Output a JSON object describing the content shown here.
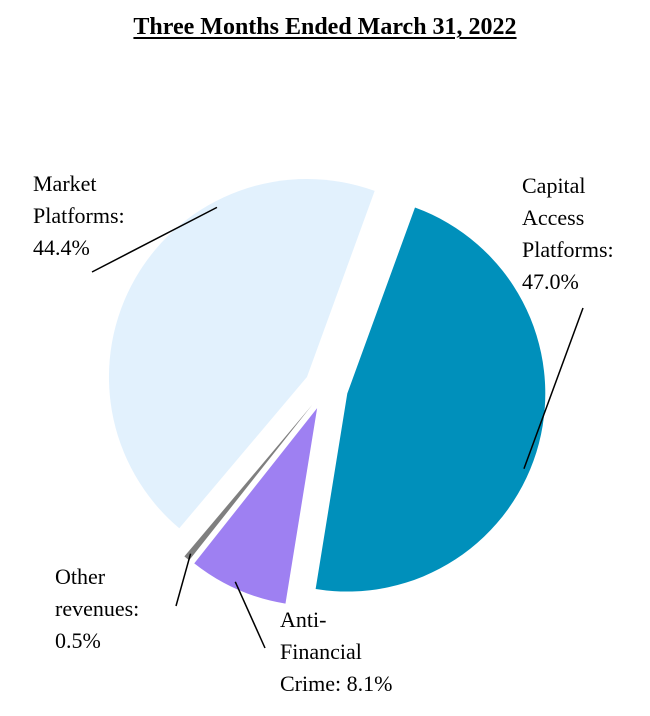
{
  "chart_data": {
    "type": "pie",
    "title": "Three Months Ended March 31, 2022",
    "slices": [
      {
        "key": "capital",
        "name": "Capital Access Platforms",
        "value": 47.0,
        "label_lines": [
          "Capital",
          "Access",
          "Platforms:",
          "47.0%"
        ],
        "color": "#0090BB",
        "exploded": true
      },
      {
        "key": "afc",
        "name": "Anti-Financial Crime",
        "value": 8.1,
        "label_lines": [
          "Anti-",
          "Financial",
          "Crime: 8.1%"
        ],
        "color": "#9E80F2",
        "exploded": true
      },
      {
        "key": "other",
        "name": "Other revenues",
        "value": 0.5,
        "label_lines": [
          "Other",
          "revenues:",
          "0.5%"
        ],
        "color": "#7F7F7F",
        "exploded": true
      },
      {
        "key": "market",
        "name": "Market Platforms",
        "value": 44.4,
        "label_lines": [
          "Market",
          "Platforms:",
          "44.4%"
        ],
        "color": "#E2F1FD",
        "exploded": true
      }
    ]
  }
}
